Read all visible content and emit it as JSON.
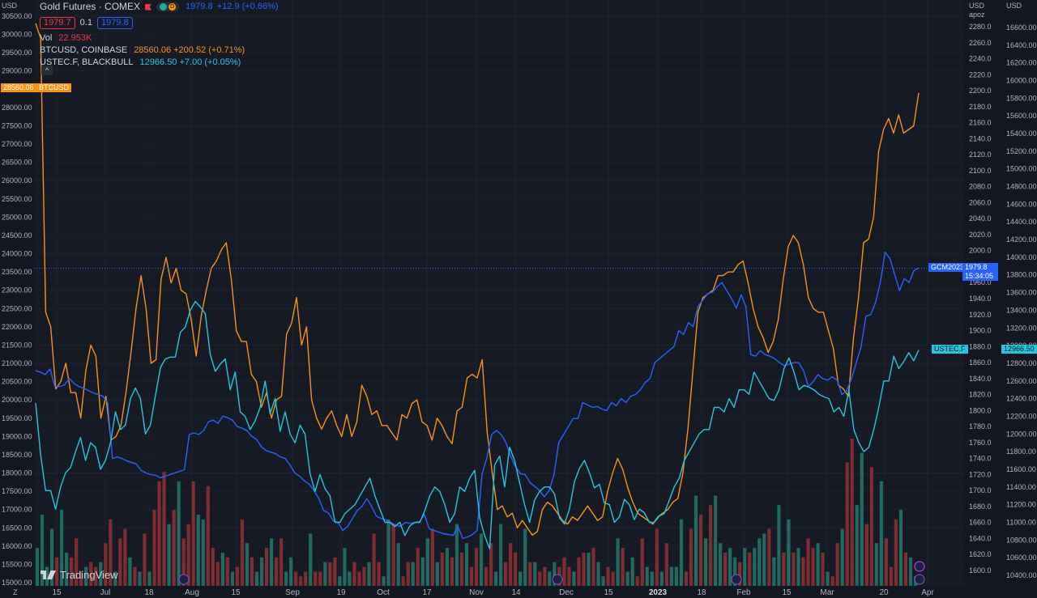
{
  "header": {
    "symbol_title": "Gold Futures · COMEX",
    "interval_badge": "D",
    "price": "1979.8",
    "change": "+12.9 (+0.66%)",
    "bid": "1979.7",
    "spread": "0.1",
    "ask": "1979.8",
    "vol_label": "Vol",
    "vol_value": "22.953K",
    "btc_label": "BTCUSD, COINBASE",
    "btc_value": "28560.06 +200.52 (+0.71%)",
    "ustec_label": "USTEC.F, BLACKBULL",
    "ustec_value": "12966.50 +7.00 (+0.05%)",
    "collapse_symbol": "^"
  },
  "axes": {
    "left_currency": "USD",
    "right1_currency": "USD",
    "right1_sub": "apoz",
    "right2_currency": "USD",
    "corner_left": "Z"
  },
  "price_tags": {
    "btc_price": "28560.06",
    "btc_name": "BTCUSD",
    "gold_name": "GCM2023",
    "gold_price": "1979.8",
    "gold_countdown": "15:34:05",
    "ustec_name": "USTEC.F",
    "ustec_price": "12966.50"
  },
  "logo": {
    "text": "TradingView"
  },
  "colors": {
    "gold": "#2962ff",
    "btc": "#f7931a",
    "ustec": "#26c6da",
    "vol_up": "#22695f",
    "vol_down": "#7e2d33"
  },
  "chart_data": {
    "type": "line",
    "x_ticks": [
      "15",
      "Jul",
      "18",
      "Aug",
      "15",
      "Sep",
      "19",
      "Oct",
      "17",
      "Nov",
      "14",
      "Dec",
      "15",
      "2023",
      "18",
      "Feb",
      "15",
      "Mar",
      "20",
      "Apr"
    ],
    "left_axis": {
      "currency": "USD",
      "ylim": [
        15000,
        30500
      ],
      "ticks": [
        30500,
        30000,
        29500,
        29000,
        28500,
        28000,
        27500,
        27000,
        26500,
        26000,
        25500,
        25000,
        24500,
        24000,
        23500,
        23000,
        22500,
        22000,
        21500,
        21000,
        20500,
        20000,
        19500,
        19000,
        18500,
        18000,
        17500,
        17000,
        16500,
        16000,
        15500,
        15000
      ]
    },
    "right_axis_gold": {
      "currency": "USD",
      "ylim": [
        1600,
        2280
      ],
      "ticks": [
        2280,
        2260,
        2240,
        2220,
        2200,
        2180,
        2160,
        2140,
        2120,
        2100,
        2080,
        2060,
        2040,
        2020,
        2000,
        1980,
        1960,
        1940,
        1920,
        1900,
        1880,
        1860,
        1840,
        1820,
        1800,
        1780,
        1760,
        1740,
        1720,
        1700,
        1680,
        1660,
        1640,
        1620,
        1600
      ]
    },
    "right_axis_ustec": {
      "currency": "USD",
      "ylim": [
        10400,
        16600
      ],
      "ticks": [
        16600,
        16400,
        16200,
        16000,
        15800,
        15600,
        15400,
        15200,
        15000,
        14800,
        14600,
        14400,
        14200,
        14000,
        13800,
        13600,
        13400,
        13200,
        13000,
        12800,
        12600,
        12400,
        12200,
        12000,
        11800,
        11600,
        11400,
        11200,
        11000,
        10800,
        10600,
        10400
      ]
    },
    "series": [
      {
        "name": "BTCUSD, COINBASE",
        "axis": "left",
        "color": "#f7931a",
        "values": [
          30300,
          29900,
          22400,
          22000,
          20300,
          20500,
          21000,
          20200,
          20200,
          19500,
          20800,
          21500,
          21200,
          19500,
          20100,
          18900,
          19000,
          19300,
          20200,
          21300,
          22500,
          23400,
          22500,
          21000,
          21100,
          23300,
          23900,
          23200,
          23600,
          23000,
          22900,
          22200,
          21200,
          22300,
          23000,
          23600,
          23800,
          24100,
          24300,
          23300,
          21900,
          21600,
          21600,
          20700,
          20500,
          19800,
          20200,
          19500,
          20000,
          20100,
          21800,
          22100,
          22800,
          21500,
          22000,
          20000,
          19500,
          19200,
          19500,
          19700,
          19300,
          19000,
          19600,
          19000,
          19400,
          20400,
          20100,
          19600,
          19700,
          19300,
          19300,
          19100,
          18900,
          19600,
          19500,
          19900,
          20000,
          19400,
          19300,
          18900,
          19500,
          19300,
          19000,
          18800,
          19700,
          19800,
          20600,
          20700,
          20600,
          21100,
          19100,
          18000,
          17000,
          17100,
          16800,
          16900,
          16500,
          16700,
          16500,
          16300,
          16400,
          17000,
          17200,
          17100,
          16900,
          16700,
          16600,
          16800,
          16700,
          16900,
          17100,
          16900,
          16700,
          16800,
          17500,
          18000,
          18400,
          18100,
          17600,
          17200,
          16900,
          16800,
          16700,
          16600,
          16800,
          16900,
          17000,
          17200,
          17300,
          18000,
          19200,
          20800,
          22400,
          22800,
          22900,
          23000,
          23400,
          23400,
          23500,
          23500,
          23700,
          23800,
          23200,
          22500,
          22000,
          21700,
          21300,
          21600,
          22200,
          23300,
          24200,
          24500,
          24300,
          23700,
          22800,
          22500,
          22400,
          22400,
          21900,
          21400,
          20400,
          20300,
          20100,
          21700,
          22800,
          24300,
          24400,
          25000,
          26800,
          27400,
          27700,
          27300,
          27800,
          27300,
          27400,
          27500,
          28400
        ]
      },
      {
        "name": "Gold Futures · COMEX",
        "axis": "right_gold",
        "color": "#2962ff",
        "values": [
          1850,
          1848,
          1845,
          1852,
          1830,
          1830,
          1832,
          1840,
          1834,
          1830,
          1828,
          1825,
          1822,
          1820,
          1818,
          1810,
          1740,
          1742,
          1740,
          1737,
          1735,
          1733,
          1725,
          1722,
          1720,
          1719,
          1716,
          1718,
          1720,
          1722,
          1724,
          1726,
          1770,
          1772,
          1770,
          1775,
          1786,
          1788,
          1784,
          1793,
          1791,
          1788,
          1780,
          1778,
          1775,
          1768,
          1764,
          1755,
          1750,
          1748,
          1746,
          1742,
          1740,
          1732,
          1722,
          1718,
          1712,
          1708,
          1700,
          1690,
          1675,
          1672,
          1662,
          1660,
          1650,
          1655,
          1665,
          1675,
          1680,
          1690,
          1680,
          1668,
          1665,
          1663,
          1660,
          1657,
          1655,
          1660,
          1659,
          1660,
          1661,
          1670,
          1652,
          1650,
          1648,
          1646,
          1645,
          1644,
          1655,
          1640,
          1642,
          1645,
          1650,
          1720,
          1740,
          1770,
          1775,
          1770,
          1760,
          1742,
          1730,
          1721,
          1720,
          1710,
          1705,
          1700,
          1692,
          1700,
          1720,
          1760,
          1770,
          1780,
          1790,
          1790,
          1810,
          1807,
          1804,
          1805,
          1802,
          1800,
          1810,
          1806,
          1815,
          1810,
          1818,
          1820,
          1826,
          1835,
          1840,
          1860,
          1865,
          1870,
          1875,
          1880,
          1900,
          1895,
          1910,
          1905,
          1930,
          1938,
          1946,
          1948,
          1955,
          1960,
          1950,
          1940,
          1928,
          1945,
          1930,
          1870,
          1868,
          1875,
          1870,
          1868,
          1865,
          1860,
          1856,
          1858,
          1860,
          1860,
          1850,
          1830,
          1836,
          1845,
          1840,
          1838,
          1842,
          1838,
          1820,
          1825,
          1840,
          1860,
          1880,
          1918,
          1920,
          1935,
          1960,
          1998,
          1990,
          1970,
          1950,
          1965,
          1960,
          1975,
          1978
        ]
      },
      {
        "name": "USTEC.F, BLACKBULL",
        "axis": "right_ustec",
        "color": "#26c6da",
        "values": [
          12350,
          11760,
          11360,
          11360,
          11150,
          11400,
          11560,
          11620,
          11800,
          11960,
          11700,
          11900,
          11850,
          11600,
          11700,
          11900,
          12250,
          12050,
          12100,
          12400,
          12520,
          12400,
          12000,
          12100,
          12430,
          12750,
          12850,
          12870,
          12870,
          13150,
          13210,
          13400,
          13500,
          13440,
          13360,
          12900,
          12710,
          12790,
          12850,
          12500,
          12700,
          12250,
          12200,
          12050,
          12150,
          12300,
          12600,
          12230,
          12400,
          12030,
          12250,
          12000,
          11900,
          12100,
          12000,
          11550,
          11350,
          11540,
          11380,
          11300,
          11000,
          11000,
          11100,
          11150,
          11200,
          11300,
          11400,
          11500,
          11300,
          11150,
          11000,
          11000,
          10950,
          11000,
          10850,
          10960,
          11000,
          11000,
          11130,
          11300,
          11400,
          11350,
          11200,
          11000,
          11100,
          11400,
          11350,
          11500,
          11590,
          11050,
          10850,
          10700,
          11650,
          11750,
          11400,
          11850,
          11700,
          11450,
          11200,
          11000,
          11250,
          11350,
          11400,
          11400,
          11320,
          11050,
          10980,
          11150,
          11460,
          11610,
          11700,
          11560,
          11390,
          11430,
          11220,
          11200,
          11000,
          11060,
          11260,
          11200,
          11030,
          11150,
          11110,
          11000,
          11000,
          11070,
          11100,
          11250,
          11400,
          11500,
          11700,
          11800,
          11900,
          12000,
          12050,
          12050,
          12300,
          12300,
          12250,
          12400,
          12300,
          12500,
          12500,
          12450,
          12700,
          12600,
          12500,
          12400,
          12380,
          12500,
          12740,
          12860,
          12700,
          12500,
          12550,
          12530,
          12500,
          12450,
          12420,
          12400,
          12250,
          12300,
          12200,
          12500,
          12050,
          11900,
          11800,
          11850,
          12050,
          12300,
          12600,
          12600,
          12880,
          12740,
          12820,
          12920,
          12830,
          12950
        ]
      }
    ],
    "volume": [
      [
        1,
        8
      ],
      [
        1,
        15
      ],
      [
        1,
        4
      ],
      [
        1,
        12
      ],
      [
        0,
        6
      ],
      [
        1,
        16
      ],
      [
        1,
        7
      ],
      [
        0,
        6
      ],
      [
        0,
        10
      ],
      [
        0,
        3
      ],
      [
        1,
        4
      ],
      [
        0,
        5
      ],
      [
        0,
        4
      ],
      [
        1,
        5
      ],
      [
        0,
        9
      ],
      [
        0,
        14
      ],
      [
        1,
        3
      ],
      [
        0,
        10
      ],
      [
        0,
        12
      ],
      [
        1,
        6
      ],
      [
        0,
        4
      ],
      [
        1,
        3
      ],
      [
        0,
        11
      ],
      [
        1,
        3
      ],
      [
        0,
        16
      ],
      [
        0,
        22
      ],
      [
        0,
        24
      ],
      [
        1,
        13
      ],
      [
        0,
        16
      ],
      [
        1,
        22
      ],
      [
        0,
        10
      ],
      [
        0,
        13
      ],
      [
        0,
        22
      ],
      [
        1,
        15
      ],
      [
        1,
        14
      ],
      [
        0,
        21
      ],
      [
        0,
        8
      ],
      [
        0,
        5
      ],
      [
        1,
        7
      ],
      [
        0,
        6
      ],
      [
        1,
        3
      ],
      [
        0,
        4
      ],
      [
        0,
        14
      ],
      [
        1,
        9
      ],
      [
        0,
        6
      ],
      [
        1,
        3
      ],
      [
        1,
        6
      ],
      [
        0,
        8
      ],
      [
        1,
        10
      ],
      [
        0,
        6
      ],
      [
        0,
        10
      ],
      [
        1,
        3
      ],
      [
        1,
        6
      ],
      [
        0,
        3
      ],
      [
        0,
        2
      ],
      [
        0,
        3
      ],
      [
        1,
        11
      ],
      [
        0,
        3
      ],
      [
        0,
        3
      ],
      [
        1,
        5
      ],
      [
        0,
        5
      ],
      [
        0,
        6
      ],
      [
        1,
        2
      ],
      [
        1,
        8
      ],
      [
        1,
        3
      ],
      [
        0,
        5
      ],
      [
        0,
        3
      ],
      [
        0,
        4
      ],
      [
        1,
        5
      ],
      [
        0,
        11
      ],
      [
        0,
        5
      ],
      [
        1,
        2
      ],
      [
        1,
        14
      ],
      [
        0,
        13
      ],
      [
        1,
        9
      ],
      [
        0,
        2
      ],
      [
        0,
        5
      ],
      [
        1,
        5
      ],
      [
        0,
        8
      ],
      [
        1,
        6
      ],
      [
        1,
        10
      ],
      [
        0,
        12
      ],
      [
        1,
        5
      ],
      [
        0,
        7
      ],
      [
        1,
        8
      ],
      [
        0,
        6
      ],
      [
        1,
        13
      ],
      [
        0,
        7
      ],
      [
        1,
        9
      ],
      [
        0,
        4
      ],
      [
        0,
        8
      ],
      [
        1,
        11
      ],
      [
        0,
        4
      ],
      [
        0,
        9
      ],
      [
        1,
        3
      ],
      [
        1,
        13
      ],
      [
        0,
        5
      ],
      [
        0,
        9
      ],
      [
        0,
        7
      ],
      [
        1,
        3
      ],
      [
        1,
        12
      ],
      [
        0,
        5
      ],
      [
        1,
        5
      ],
      [
        0,
        3
      ],
      [
        0,
        4
      ],
      [
        1,
        3
      ],
      [
        1,
        5
      ],
      [
        0,
        4
      ],
      [
        0,
        6
      ],
      [
        0,
        4
      ],
      [
        1,
        3
      ],
      [
        0,
        6
      ],
      [
        0,
        7
      ],
      [
        1,
        7
      ],
      [
        0,
        8
      ],
      [
        1,
        5
      ],
      [
        1,
        2
      ],
      [
        0,
        4
      ],
      [
        0,
        3
      ],
      [
        1,
        10
      ],
      [
        0,
        8
      ],
      [
        1,
        3
      ],
      [
        1,
        6
      ],
      [
        0,
        2
      ],
      [
        0,
        10
      ],
      [
        1,
        4
      ],
      [
        1,
        3
      ],
      [
        0,
        12
      ],
      [
        1,
        3
      ],
      [
        0,
        9
      ],
      [
        1,
        4
      ],
      [
        1,
        4
      ],
      [
        1,
        14
      ],
      [
        0,
        3
      ],
      [
        0,
        12
      ],
      [
        1,
        19
      ],
      [
        0,
        15
      ],
      [
        1,
        10
      ],
      [
        0,
        17
      ],
      [
        1,
        19
      ],
      [
        1,
        9
      ],
      [
        0,
        7
      ],
      [
        1,
        8
      ],
      [
        1,
        6
      ],
      [
        0,
        5
      ],
      [
        1,
        8
      ],
      [
        0,
        7
      ],
      [
        1,
        8
      ],
      [
        1,
        10
      ],
      [
        1,
        11
      ],
      [
        0,
        12
      ],
      [
        1,
        6
      ],
      [
        1,
        17
      ],
      [
        0,
        7
      ],
      [
        1,
        14
      ],
      [
        0,
        7
      ],
      [
        1,
        8
      ],
      [
        0,
        6
      ],
      [
        0,
        10
      ],
      [
        0,
        8
      ],
      [
        1,
        9
      ],
      [
        0,
        7
      ],
      [
        1,
        3
      ],
      [
        0,
        2
      ],
      [
        0,
        9
      ],
      [
        1,
        12
      ],
      [
        0,
        26
      ],
      [
        0,
        31
      ],
      [
        1,
        17
      ],
      [
        1,
        28
      ],
      [
        0,
        13
      ],
      [
        0,
        25
      ],
      [
        1,
        9
      ],
      [
        1,
        22
      ],
      [
        0,
        10
      ],
      [
        0,
        4
      ],
      [
        0,
        14
      ],
      [
        1,
        16
      ],
      [
        0,
        7
      ],
      [
        1,
        6
      ],
      [
        1,
        2
      ]
    ]
  }
}
